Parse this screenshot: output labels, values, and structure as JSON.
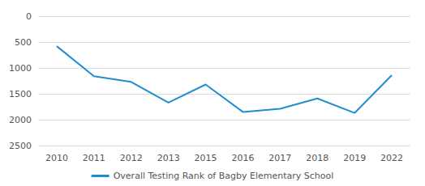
{
  "chart_data": {
    "type": "line",
    "categories": [
      "2010",
      "2011",
      "2012",
      "2013",
      "2015",
      "2016",
      "2017",
      "2018",
      "2019",
      "2022"
    ],
    "series": [
      {
        "name": "Overall Testing Rank of Bagby Elementary School",
        "color": "#1f8fd0",
        "values": [
          580,
          1160,
          1270,
          1670,
          1320,
          1850,
          1790,
          1590,
          1870,
          1140
        ]
      }
    ],
    "ylim": [
      2500,
      0
    ],
    "yticks": [
      0,
      500,
      1000,
      1500,
      2000,
      2500
    ],
    "grid": true,
    "legend": "bottom",
    "marker": "none",
    "line_style": "solid"
  }
}
